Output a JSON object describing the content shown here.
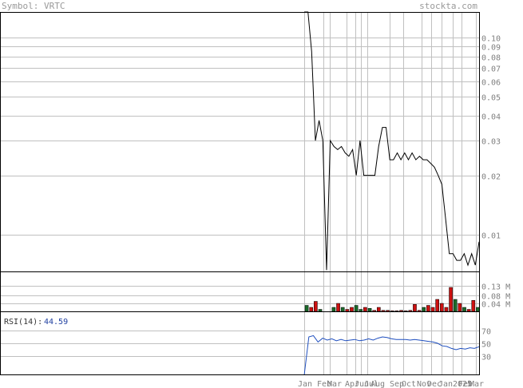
{
  "header": {
    "symbol_label": "Symbol:",
    "symbol": "VRTC",
    "site": "stockta.com"
  },
  "colors": {
    "price_line": "#000000",
    "grid": "#c0c0c0",
    "vol_up": "#1a6b2a",
    "vol_down": "#cc1111",
    "rsi_line": "#1f4fbf",
    "rsi_value": "#1f3fa0",
    "axis_text": "#808080"
  },
  "chart_data": [
    {
      "type": "line",
      "name": "price",
      "y_scale": "log",
      "ylim": [
        0.0065,
        0.135
      ],
      "y_ticks": [
        {
          "value": 0.1,
          "label": "0.10"
        },
        {
          "value": 0.09,
          "label": "0.09"
        },
        {
          "value": 0.08,
          "label": "0.08"
        },
        {
          "value": 0.07,
          "label": "0.07"
        },
        {
          "value": 0.06,
          "label": "0.06"
        },
        {
          "value": 0.05,
          "label": "0.05"
        },
        {
          "value": 0.04,
          "label": "0.04"
        },
        {
          "value": 0.03,
          "label": "0.03"
        },
        {
          "value": 0.02,
          "label": "0.02"
        },
        {
          "value": 0.01,
          "label": "0.01"
        }
      ],
      "values": [
        0.135,
        0.135,
        0.085,
        0.03,
        0.038,
        0.03,
        0.0066,
        0.03,
        0.028,
        0.027,
        0.028,
        0.026,
        0.025,
        0.027,
        0.02,
        0.03,
        0.02,
        0.02,
        0.02,
        0.02,
        0.028,
        0.035,
        0.035,
        0.024,
        0.024,
        0.026,
        0.024,
        0.026,
        0.024,
        0.026,
        0.024,
        0.025,
        0.024,
        0.024,
        0.023,
        0.022,
        0.02,
        0.018,
        0.012,
        0.008,
        0.008,
        0.0074,
        0.0074,
        0.008,
        0.007,
        0.008,
        0.007,
        0.0092
      ]
    },
    {
      "type": "bar",
      "name": "volume",
      "ylim": [
        0,
        0.2
      ],
      "y_ticks": [
        {
          "value": 0.13,
          "label": "0.13 M"
        },
        {
          "value": 0.08,
          "label": "0.08 M"
        },
        {
          "value": 0.04,
          "label": "0.04 M"
        }
      ],
      "values": [
        0.03,
        0.02,
        0.05,
        0.01,
        0,
        0,
        0.02,
        0.04,
        0.02,
        0.01,
        0.02,
        0.03,
        0.01,
        0.02,
        0.015,
        0.005,
        0.02,
        0.005,
        0.005,
        0.003,
        0.003,
        0.005,
        0.003,
        0.005,
        0.035,
        0.005,
        0.02,
        0.03,
        0.02,
        0.06,
        0.04,
        0.02,
        0.12,
        0.06,
        0.04,
        0.02,
        0.01,
        0.055,
        0.02
      ],
      "up": [
        true,
        false,
        false,
        true,
        false,
        false,
        true,
        false,
        true,
        false,
        false,
        true,
        true,
        false,
        true,
        false,
        false,
        false,
        false,
        false,
        false,
        false,
        false,
        false,
        false,
        false,
        true,
        false,
        false,
        false,
        false,
        false,
        false,
        true,
        false,
        true,
        false,
        false,
        true
      ]
    },
    {
      "type": "line",
      "name": "rsi",
      "ylim": [
        0,
        100
      ],
      "y_ticks": [
        70,
        50,
        30
      ],
      "label": "RSI(14):",
      "value_label": "44.59",
      "values": [
        0,
        60,
        62,
        52,
        58,
        55,
        57,
        54,
        56,
        54,
        55,
        56,
        54,
        55,
        57,
        55,
        58,
        60,
        59,
        57,
        56,
        56,
        56,
        55,
        56,
        55,
        54,
        53,
        52,
        50,
        46,
        45,
        42,
        40,
        42,
        41,
        43,
        42,
        44.59
      ]
    }
  ],
  "x_axis": {
    "month_labels": [
      "Jan",
      "Feb",
      "Mar",
      "Apr",
      "Jun",
      "Jul",
      "Aug",
      "Sep",
      "Oct",
      "Nov",
      "Dec",
      "Jan",
      "2025",
      "Feb",
      "Mar"
    ]
  }
}
